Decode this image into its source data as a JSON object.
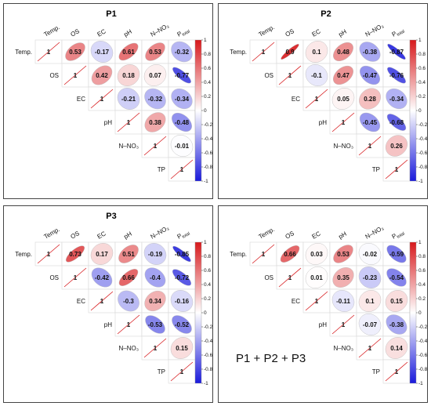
{
  "labels": {
    "vars": [
      "Temp.",
      "OS",
      "EC",
      "pH",
      "N–NO₃",
      "P"
    ],
    "p_sub": "total",
    "diag_value": "1",
    "colorbar_ticks": [
      "1",
      "0.8",
      "0.6",
      "0.4",
      "0.2",
      "0",
      "-0.2",
      "-0.4",
      "-0.6",
      "-0.8",
      "-1"
    ]
  },
  "colors": {
    "positive": "#d7191c",
    "neutral": "#ffffff",
    "negative": "#1a1adb",
    "border": "#444444"
  },
  "overlay_text": "P1 + P2 + P3",
  "chart_data": [
    {
      "type": "heatmap",
      "title": "P1",
      "variables": [
        "Temp.",
        "OS",
        "EC",
        "pH",
        "N–NO₃",
        "Ptotal"
      ],
      "row_labels": [
        "Temp.",
        "OS",
        "EC",
        "pH",
        "N–NO₃",
        "TP"
      ],
      "matrix": [
        [
          1,
          0.53,
          -0.17,
          0.61,
          0.53,
          -0.32
        ],
        [
          null,
          1,
          0.42,
          0.18,
          0.07,
          -0.77
        ],
        [
          null,
          null,
          1,
          -0.21,
          -0.32,
          -0.34
        ],
        [
          null,
          null,
          null,
          1,
          0.38,
          -0.48
        ],
        [
          null,
          null,
          null,
          null,
          1,
          -0.01
        ],
        [
          null,
          null,
          null,
          null,
          null,
          1
        ]
      ],
      "color_range": [
        -1,
        1
      ]
    },
    {
      "type": "heatmap",
      "title": "P2",
      "variables": [
        "Temp.",
        "OS",
        "EC",
        "pH",
        "N–NO₃",
        "Ptotal"
      ],
      "row_labels": [
        "Temp.",
        "OS",
        "EC",
        "pH",
        "N–NO₃",
        "TP"
      ],
      "matrix": [
        [
          1,
          0.9,
          0.1,
          0.48,
          -0.38,
          -0.87
        ],
        [
          null,
          1,
          -0.1,
          0.47,
          -0.47,
          -0.76
        ],
        [
          null,
          null,
          1,
          0.05,
          0.28,
          -0.34
        ],
        [
          null,
          null,
          null,
          1,
          -0.45,
          -0.68
        ],
        [
          null,
          null,
          null,
          null,
          1,
          0.26
        ],
        [
          null,
          null,
          null,
          null,
          null,
          1
        ]
      ],
      "color_range": [
        -1,
        1
      ]
    },
    {
      "type": "heatmap",
      "title": "P3",
      "variables": [
        "Temp.",
        "OS",
        "EC",
        "pH",
        "N–NO₃",
        "Ptotal"
      ],
      "row_labels": [
        "Temp.",
        "OS",
        "EC",
        "pH",
        "N–NO₃",
        "TP"
      ],
      "matrix": [
        [
          1,
          0.73,
          0.17,
          0.51,
          -0.19,
          -0.85
        ],
        [
          null,
          1,
          -0.42,
          0.66,
          -0.4,
          -0.72
        ],
        [
          null,
          null,
          1,
          -0.3,
          0.34,
          -0.16
        ],
        [
          null,
          null,
          null,
          1,
          -0.53,
          -0.52
        ],
        [
          null,
          null,
          null,
          null,
          1,
          0.15
        ],
        [
          null,
          null,
          null,
          null,
          null,
          1
        ]
      ],
      "color_range": [
        -1,
        1
      ]
    },
    {
      "type": "heatmap",
      "title": "",
      "variables": [
        "Temp.",
        "OS",
        "EC",
        "pH",
        "N–NO₃",
        "Ptotal"
      ],
      "row_labels": [
        "Temp.",
        "OS",
        "EC",
        "pH",
        "N–NO₃",
        "TP"
      ],
      "matrix": [
        [
          1,
          0.66,
          0.03,
          0.53,
          -0.02,
          -0.59
        ],
        [
          null,
          1,
          0.01,
          0.35,
          -0.23,
          -0.54
        ],
        [
          null,
          null,
          1,
          -0.11,
          0.1,
          0.15
        ],
        [
          null,
          null,
          null,
          1,
          -0.07,
          -0.38
        ],
        [
          null,
          null,
          null,
          null,
          1,
          0.14
        ],
        [
          null,
          null,
          null,
          null,
          null,
          1
        ]
      ],
      "color_range": [
        -1,
        1
      ]
    }
  ]
}
